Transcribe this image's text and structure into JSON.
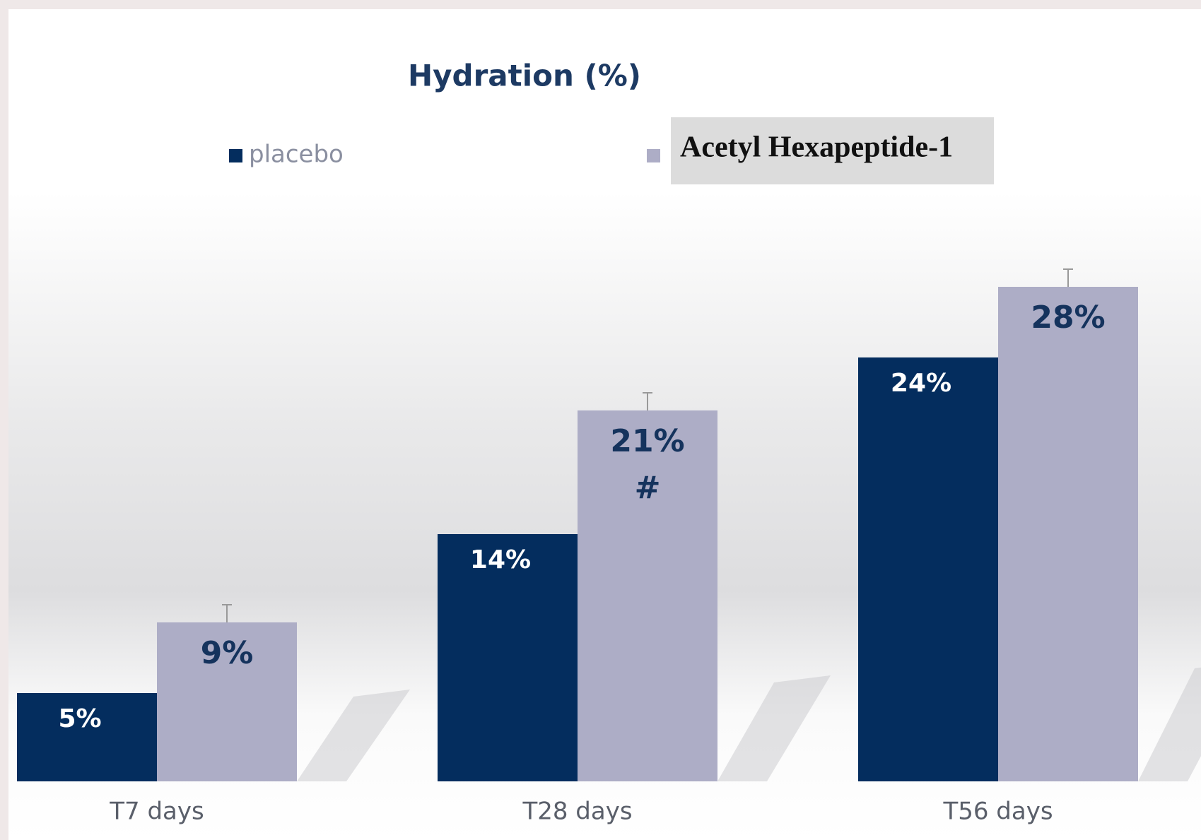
{
  "chart_data": {
    "type": "bar",
    "title": "Hydration (%)",
    "categories": [
      "T7 days",
      "T28 days",
      "T56 days"
    ],
    "series": [
      {
        "name": "placebo",
        "color": "#042d5e",
        "values": [
          5,
          14,
          24
        ],
        "value_labels": [
          "5%",
          "14%",
          "24%"
        ]
      },
      {
        "name": "Acetyl Hexapeptide-1",
        "color": "#adadc6",
        "values": [
          9,
          21,
          28
        ],
        "value_labels": [
          "9%",
          "21%",
          "28%"
        ],
        "errors": [
          1,
          1,
          1
        ],
        "value_notes": [
          null,
          "#",
          null
        ]
      }
    ],
    "ylim": [
      0,
      40
    ],
    "grid": false
  }
}
